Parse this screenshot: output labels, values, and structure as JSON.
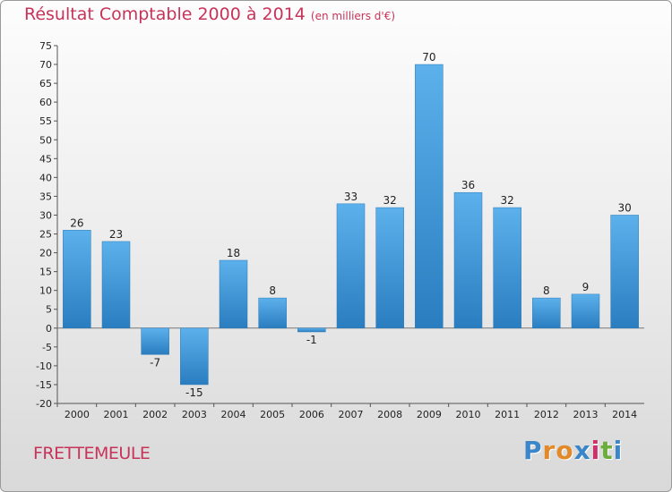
{
  "header": {
    "title": "Résultat Comptable 2000 à 2014",
    "subtitle": "(en milliers d'€)"
  },
  "footer": {
    "town": "FRETTEMEULE",
    "logo": "Proxiti"
  },
  "colors": {
    "title": "#c8335a",
    "bar_light": "#5aaeea",
    "bar_dark": "#2a7fc0",
    "logo": [
      "#3a86c8",
      "#e2892a",
      "#e2892a",
      "#3a86c8",
      "#d0306a",
      "#6cae3b",
      "#3a86c8"
    ]
  },
  "chart_data": {
    "type": "bar",
    "title": "Résultat Comptable 2000 à 2014",
    "subtitle": "(en milliers d'€)",
    "categories": [
      "2000",
      "2001",
      "2002",
      "2003",
      "2004",
      "2005",
      "2006",
      "2007",
      "2008",
      "2009",
      "2010",
      "2011",
      "2012",
      "2013",
      "2014"
    ],
    "values": [
      26,
      23,
      -7,
      -15,
      18,
      8,
      -1,
      33,
      32,
      70,
      36,
      32,
      8,
      9,
      30
    ],
    "ylim": [
      -20,
      75
    ],
    "yticks": [
      -20,
      -15,
      -10,
      -5,
      0,
      5,
      10,
      15,
      20,
      25,
      30,
      35,
      40,
      45,
      50,
      55,
      60,
      65,
      70,
      75
    ],
    "grid": false,
    "xlabel": "",
    "ylabel": ""
  }
}
